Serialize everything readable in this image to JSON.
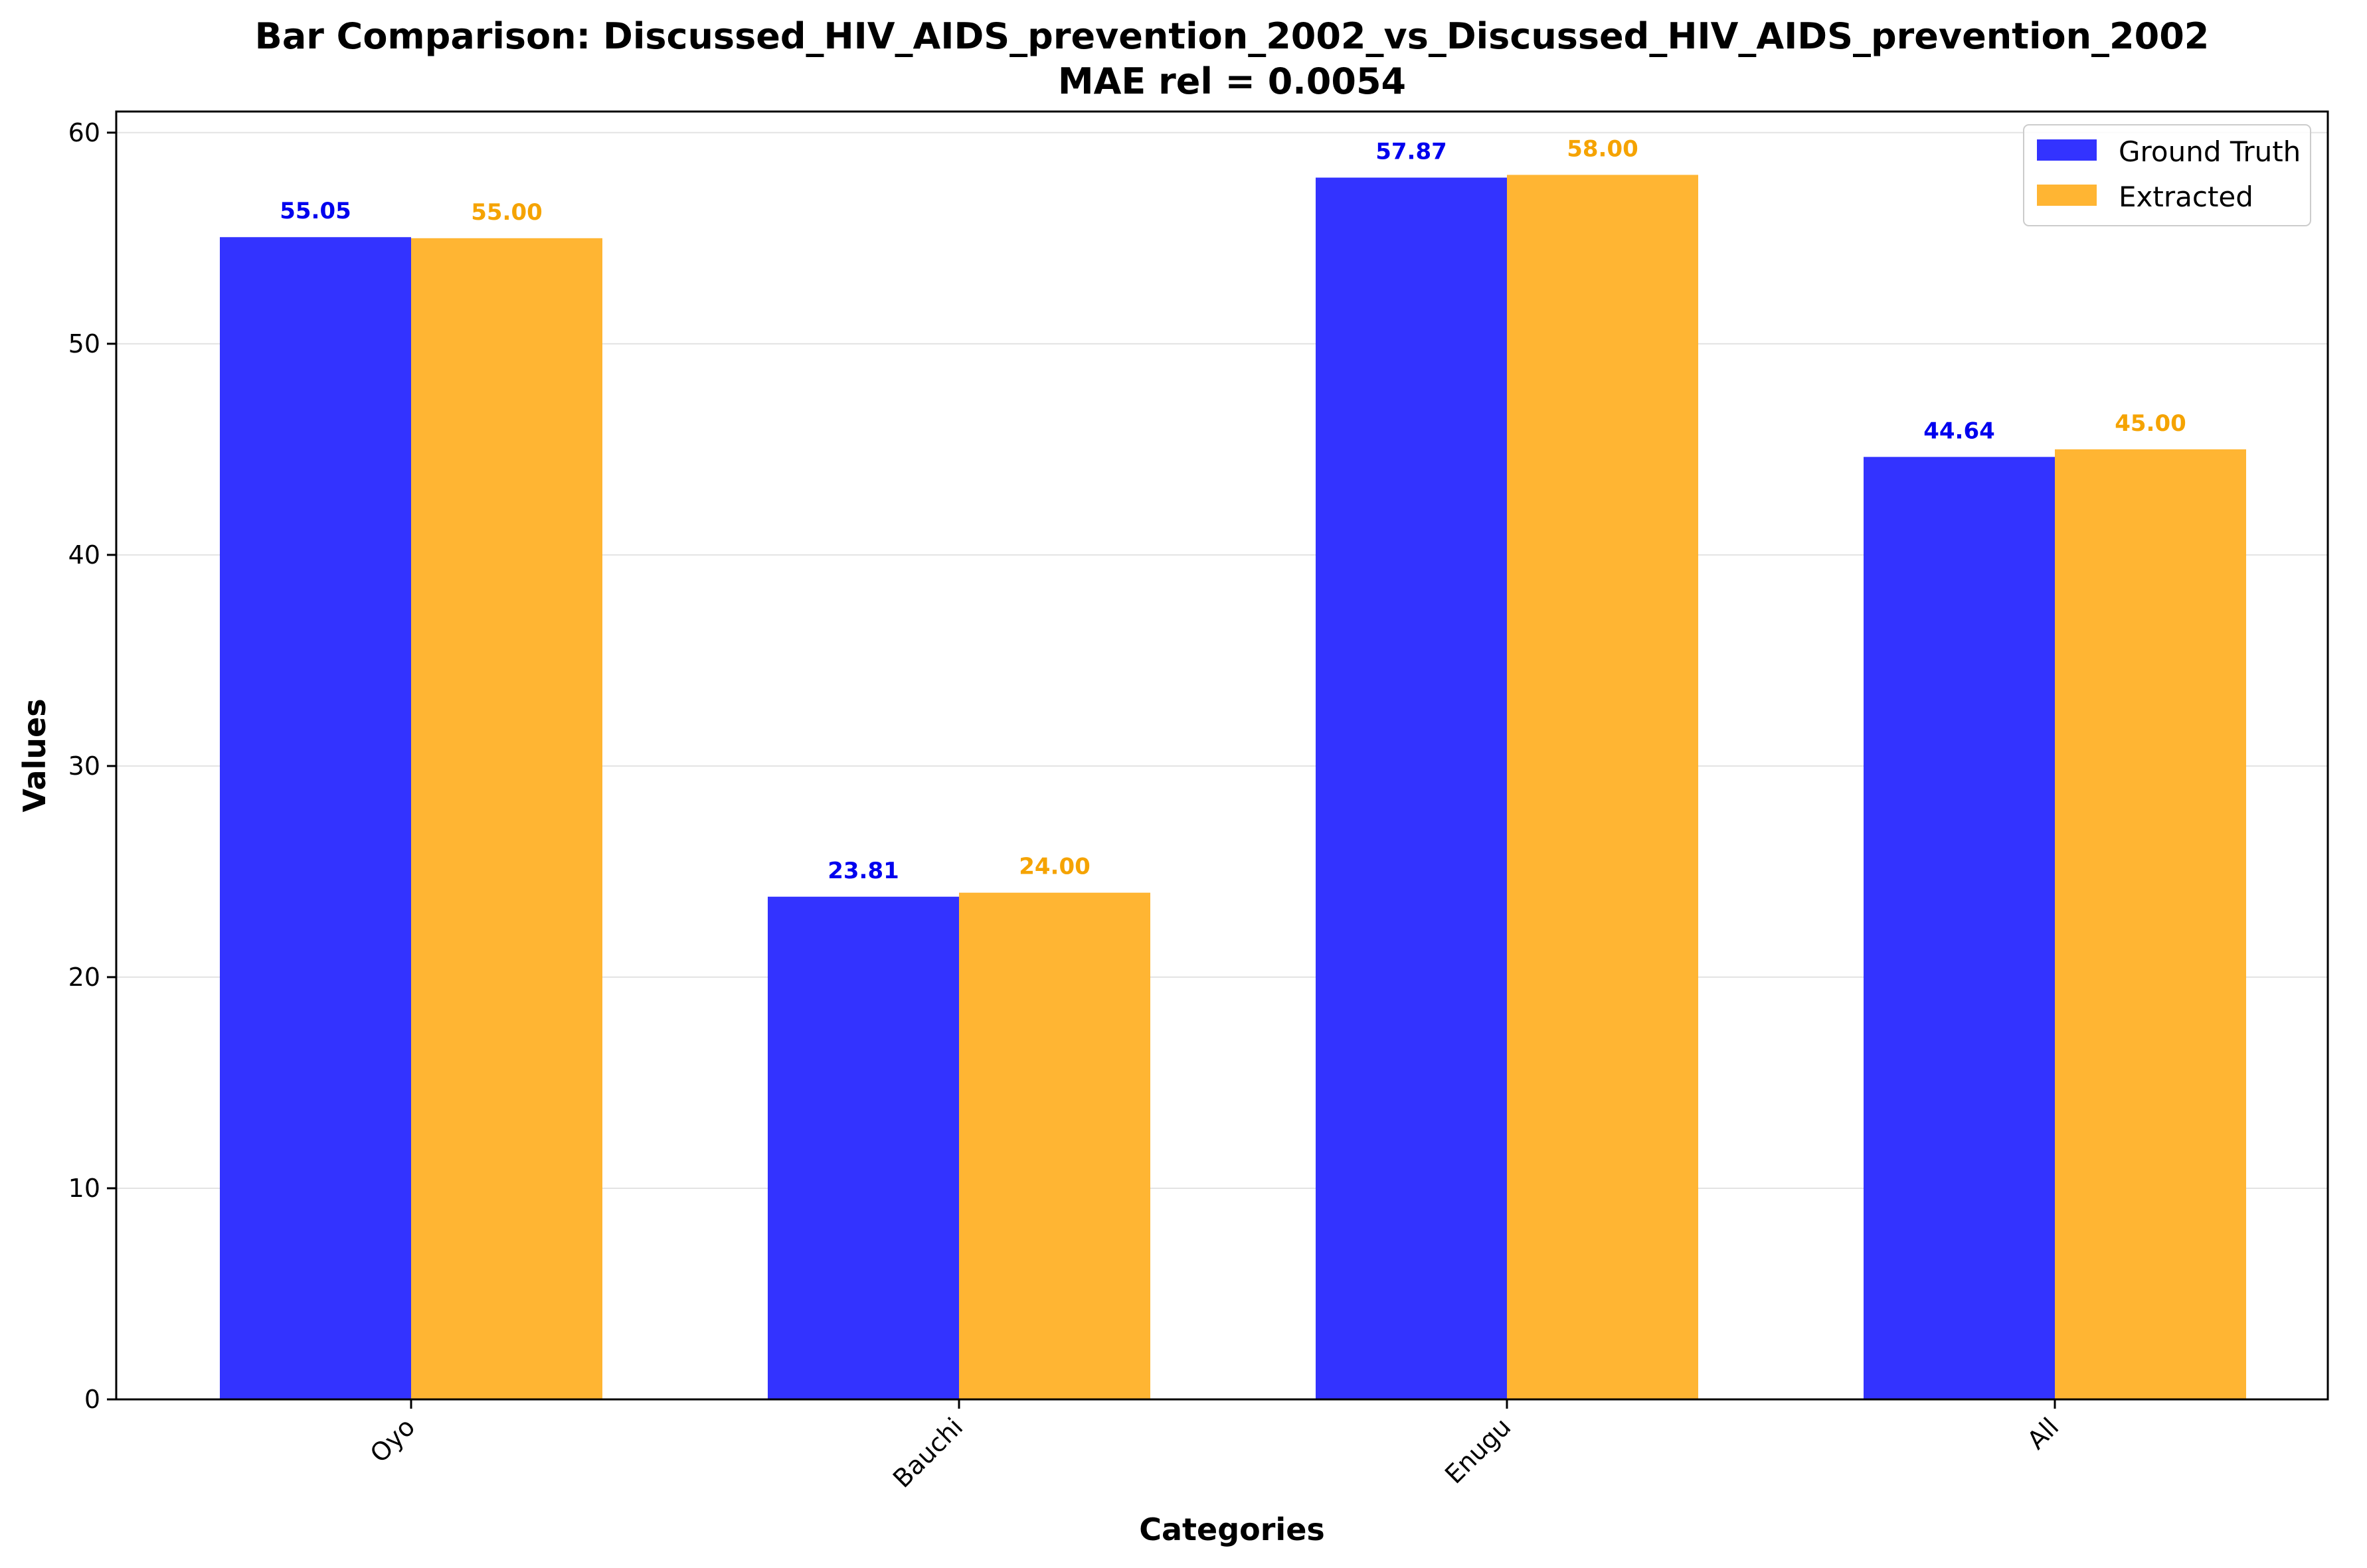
{
  "chart_data": {
    "type": "bar",
    "title": "Bar Comparison: Discussed_HIV_AIDS_prevention_2002_vs_Discussed_HIV_AIDS_prevention_2002",
    "subtitle": "MAE rel = 0.0054",
    "xlabel": "Categories",
    "ylabel": "Values",
    "categories": [
      "Oyo",
      "Bauchi",
      "Enugu",
      "All"
    ],
    "series": [
      {
        "name": "Ground Truth",
        "values": [
          55.05,
          23.81,
          57.87,
          44.64
        ],
        "labels": [
          "55.05",
          "23.81",
          "57.87",
          "44.64"
        ],
        "color": "#3333ff",
        "label_color": "#0000ee"
      },
      {
        "name": "Extracted",
        "values": [
          55.0,
          24.0,
          58.0,
          45.0
        ],
        "labels": [
          "55.00",
          "24.00",
          "58.00",
          "45.00"
        ],
        "color": "#ffb533",
        "label_color": "#f5a300"
      }
    ],
    "ylim": [
      0,
      61
    ],
    "yticks": [
      "0",
      "10",
      "20",
      "30",
      "40",
      "50",
      "60"
    ],
    "grid": "horizontal",
    "legend_position": "top-right"
  }
}
